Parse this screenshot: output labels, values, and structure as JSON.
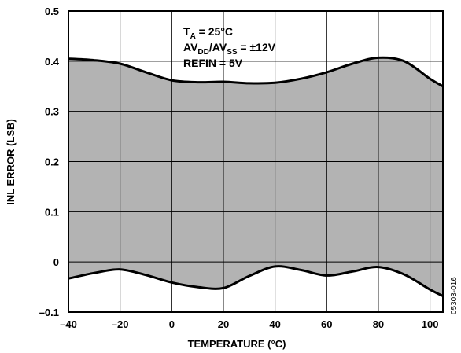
{
  "chart_data": {
    "type": "area",
    "xlabel": "TEMPERATURE (°C)",
    "ylabel": "INL ERROR (LSB)",
    "xlim": [
      -40,
      105
    ],
    "ylim": [
      -0.1,
      0.5
    ],
    "x_ticks": [
      -40,
      -20,
      0,
      20,
      40,
      60,
      80,
      100
    ],
    "x_tick_labels": [
      "–40",
      "–20",
      "0",
      "20",
      "40",
      "60",
      "80",
      "100"
    ],
    "y_ticks": [
      -0.1,
      0,
      0.1,
      0.2,
      0.3,
      0.4,
      0.5
    ],
    "y_tick_labels": [
      "–0.1",
      "0",
      "0.1",
      "0.2",
      "0.3",
      "0.4",
      "0.5"
    ],
    "grid": true,
    "series": [
      {
        "x": [
          -40,
          -30,
          -20,
          -10,
          0,
          10,
          20,
          30,
          40,
          50,
          60,
          70,
          80,
          90,
          100,
          105
        ],
        "values": [
          0.405,
          0.402,
          0.395,
          0.378,
          0.362,
          0.358,
          0.359,
          0.356,
          0.357,
          0.365,
          0.378,
          0.395,
          0.407,
          0.4,
          0.365,
          0.35
        ]
      },
      {
        "x": [
          -40,
          -30,
          -20,
          -10,
          0,
          10,
          20,
          30,
          40,
          50,
          60,
          70,
          80,
          90,
          100,
          105
        ],
        "values": [
          -0.033,
          -0.022,
          -0.015,
          -0.026,
          -0.041,
          -0.05,
          -0.052,
          -0.028,
          -0.009,
          -0.016,
          -0.027,
          -0.019,
          -0.01,
          -0.025,
          -0.055,
          -0.068
        ]
      }
    ],
    "fill_color": "#b3b3b3",
    "line_color": "#000000",
    "annotations": {
      "ta": {
        "main": "T",
        "sub": "A",
        "rest": " = 25°C"
      },
      "av": {
        "p1": "AV",
        "s1": "DD",
        "p2": "/AV",
        "s2": "SS",
        "rest": " = ±12V"
      },
      "refin": "REFIN = 5V"
    },
    "figure_id": "05303-016"
  }
}
